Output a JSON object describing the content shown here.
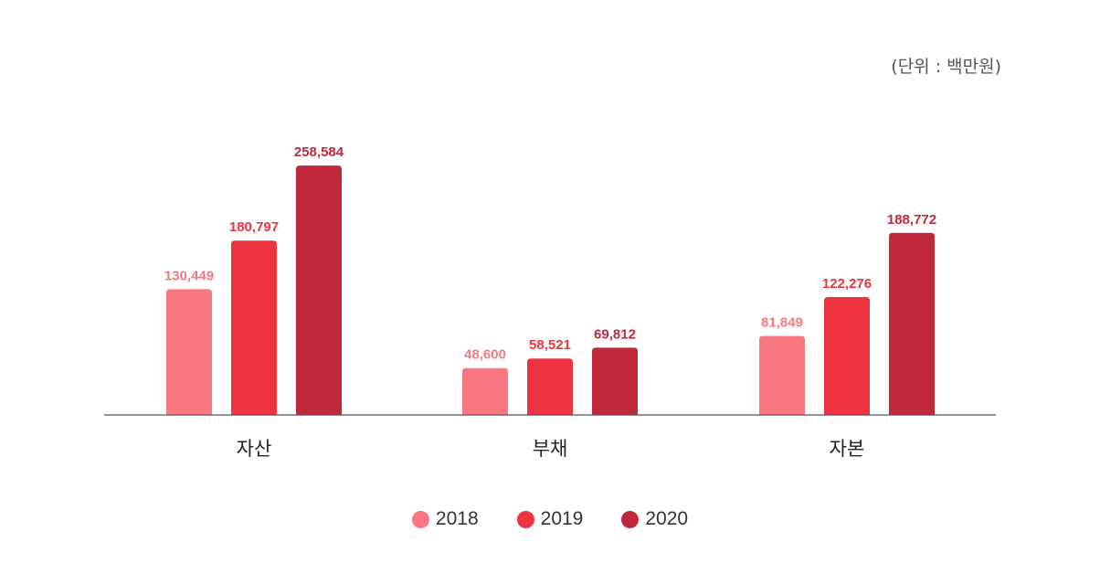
{
  "unit_label": "(단위 : 백만원)",
  "chart_data": {
    "type": "bar",
    "categories": [
      "자산",
      "부채",
      "자본"
    ],
    "series": [
      {
        "name": "2018",
        "color": "#f87781",
        "values": [
          130449,
          48600,
          81849
        ]
      },
      {
        "name": "2019",
        "color": "#ee3340",
        "values": [
          180797,
          58521,
          122276
        ]
      },
      {
        "name": "2020",
        "color": "#c0283c",
        "values": [
          258584,
          69812,
          188772
        ]
      }
    ],
    "value_labels": [
      [
        "130,449",
        "48,600",
        "81,849"
      ],
      [
        "180,797",
        "58,521",
        "122,276"
      ],
      [
        "258,584",
        "69,812",
        "188,772"
      ]
    ],
    "ylim": [
      0,
      289000
    ],
    "grid": false,
    "legend_position": "bottom"
  }
}
